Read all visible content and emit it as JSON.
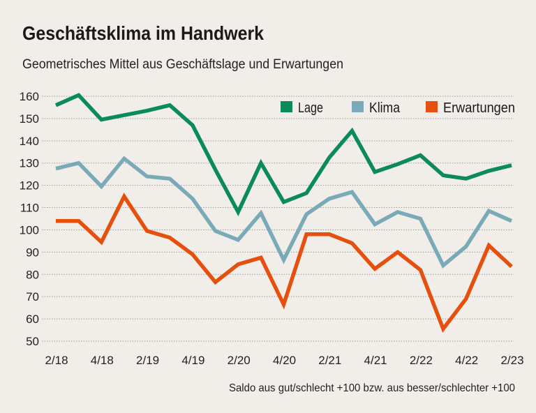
{
  "chart_data": {
    "type": "line",
    "title": "Geschäftsklima im Handwerk",
    "subtitle": "Geometrisches Mittel aus Geschäftslage und Erwartungen",
    "footnote": "Saldo aus gut/schlecht +100 bzw. aus besser/schlechter +100",
    "xlabel": "",
    "ylabel": "",
    "ylim": [
      50,
      160
    ],
    "y_ticks": [
      "50",
      "60",
      "70",
      "80",
      "90",
      "100",
      "110",
      "120",
      "130",
      "140",
      "150",
      "160"
    ],
    "x_tick_labels": [
      "2/18",
      "4/18",
      "2/19",
      "4/19",
      "2/20",
      "4/20",
      "2/21",
      "4/21",
      "2/22",
      "4/22",
      "2/23"
    ],
    "x": [
      "2/18",
      "3/18",
      "4/18",
      "1/19",
      "2/19",
      "3/19",
      "4/19",
      "1/20",
      "2/20",
      "3/20",
      "4/20",
      "1/21",
      "2/21",
      "3/21",
      "4/21",
      "1/22",
      "2/22",
      "3/22",
      "4/22",
      "1/23",
      "2/23"
    ],
    "grid": true,
    "legend_position": "top-right",
    "series": [
      {
        "name": "Lage",
        "color": "#0b8a5c",
        "values": [
          156,
          160.5,
          149.5,
          151.5,
          153.5,
          156,
          147,
          127,
          108,
          130,
          112.5,
          116.5,
          132.5,
          144.5,
          126,
          129.5,
          133.5,
          124.5,
          123,
          126.5,
          129
        ]
      },
      {
        "name": "Klima",
        "color": "#7aaab8",
        "values": [
          127.5,
          130,
          119.5,
          132,
          124,
          123,
          114,
          99.5,
          95.5,
          107.5,
          86.5,
          107,
          114,
          117,
          102.5,
          108,
          105,
          84,
          92.5,
          108.5,
          104
        ]
      },
      {
        "name": "Erwartungen",
        "color": "#e5500f",
        "values": [
          104,
          104,
          94.5,
          115,
          99.5,
          96.5,
          89,
          76.5,
          84.5,
          87.5,
          66.5,
          98,
          98,
          94,
          82.5,
          90,
          82,
          55.5,
          69,
          93,
          83.5
        ]
      }
    ]
  }
}
